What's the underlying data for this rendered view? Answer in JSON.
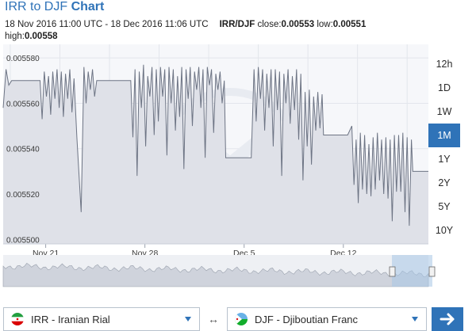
{
  "header": {
    "title_prefix": "IRR to DJF ",
    "title_bold": "Chart",
    "date_range": "18 Nov 2016 11:00 UTC - 18 Dec 2016 11:06 UTC",
    "pair": "IRR/DJF",
    "close_label": " close:",
    "close_value": "0.00553",
    "low_label": " low:",
    "low_value": "0.00551",
    "high_label": "high:",
    "high_value": "0.00558"
  },
  "ranges": [
    {
      "label": "12h",
      "active": false
    },
    {
      "label": "1D",
      "active": false
    },
    {
      "label": "1W",
      "active": false
    },
    {
      "label": "1M",
      "active": true
    },
    {
      "label": "1Y",
      "active": false
    },
    {
      "label": "2Y",
      "active": false
    },
    {
      "label": "5Y",
      "active": false
    },
    {
      "label": "10Y",
      "active": false
    }
  ],
  "converter": {
    "from_label": "IRR - Iranian Rial",
    "to_label": "DJF - Djiboutian Franc",
    "swap_symbol": "↔",
    "go_symbol": "→"
  },
  "colors": {
    "accent": "#2f73b8",
    "line": "#6d7484",
    "fill": "#dfe1e8"
  },
  "chart_data": {
    "type": "area",
    "x_tick_labels": [
      "Nov 21",
      "Nov 28",
      "Dec 5",
      "Dec 12"
    ],
    "y_tick_labels": [
      "0.005580",
      "0.005560",
      "0.005540",
      "0.005520",
      "0.005500"
    ],
    "ylim": [
      0.005498,
      0.005586
    ],
    "xlim": [
      0,
      30
    ],
    "grid": true,
    "x": [
      0,
      0.2,
      0.4,
      0.6,
      0.9,
      1.5,
      2.2,
      2.6,
      2.75,
      2.9,
      3.05,
      3.2,
      3.35,
      3.5,
      3.65,
      3.8,
      3.95,
      4.1,
      4.25,
      4.4,
      4.55,
      4.7,
      4.85,
      5.0,
      5.2,
      5.5,
      5.7,
      5.85,
      6.0,
      6.15,
      6.3,
      6.45,
      6.6,
      6.8,
      7.3,
      8.0,
      8.6,
      9.0,
      9.15,
      9.3,
      9.45,
      9.6,
      9.75,
      9.9,
      10.05,
      10.2,
      10.35,
      10.5,
      10.65,
      10.8,
      10.95,
      11.1,
      11.25,
      11.4,
      11.55,
      11.7,
      11.85,
      12.0,
      12.15,
      12.3,
      12.45,
      12.6,
      12.75,
      12.9,
      13.05,
      13.2,
      13.35,
      13.5,
      13.65,
      13.8,
      13.95,
      14.1,
      14.25,
      14.4,
      14.55,
      14.7,
      14.85,
      15.0,
      15.15,
      15.3,
      15.45,
      15.6,
      15.7,
      16.5,
      17.5,
      17.7,
      17.85,
      18.0,
      18.15,
      18.3,
      18.45,
      18.6,
      18.75,
      18.9,
      19.05,
      19.2,
      19.35,
      19.5,
      19.65,
      19.8,
      19.95,
      20.1,
      20.25,
      20.4,
      20.55,
      20.7,
      20.85,
      21.0,
      21.15,
      21.3,
      21.45,
      21.6,
      21.75,
      21.9,
      22.05,
      22.2,
      22.35,
      22.5,
      22.6,
      23.6,
      24.3,
      24.6,
      24.75,
      24.9,
      25.05,
      25.2,
      25.35,
      25.5,
      25.65,
      25.8,
      25.95,
      26.1,
      26.25,
      26.4,
      26.55,
      26.7,
      26.85,
      27.0,
      27.15,
      27.3,
      27.45,
      27.6,
      27.75,
      27.9,
      28.05,
      28.2,
      28.35,
      28.5,
      28.65,
      28.8,
      28.9,
      29.2,
      30.0
    ],
    "y": [
      0.005558,
      0.005575,
      0.005568,
      0.00557,
      0.00557,
      0.00557,
      0.00557,
      0.00557,
      0.005553,
      0.005574,
      0.005563,
      0.005572,
      0.005555,
      0.005574,
      0.005562,
      0.005575,
      0.005558,
      0.005574,
      0.005554,
      0.005573,
      0.005562,
      0.005575,
      0.005556,
      0.005571,
      0.005545,
      0.005512,
      0.005576,
      0.00556,
      0.005574,
      0.005566,
      0.005575,
      0.005563,
      0.00557,
      0.00557,
      0.00557,
      0.00557,
      0.00557,
      0.00557,
      0.005545,
      0.005575,
      0.005528,
      0.005574,
      0.005558,
      0.005577,
      0.005541,
      0.005572,
      0.005563,
      0.005576,
      0.005546,
      0.005575,
      0.005552,
      0.005576,
      0.005563,
      0.005575,
      0.005537,
      0.005576,
      0.00556,
      0.005575,
      0.005548,
      0.005572,
      0.005554,
      0.005576,
      0.005531,
      0.005575,
      0.005562,
      0.005576,
      0.00555,
      0.005574,
      0.005566,
      0.005576,
      0.005558,
      0.005575,
      0.005536,
      0.005576,
      0.005568,
      0.005575,
      0.005547,
      0.005573,
      0.005566,
      0.005574,
      0.00556,
      0.00557,
      0.005536,
      0.005536,
      0.005536,
      0.005575,
      0.005552,
      0.005576,
      0.005562,
      0.005575,
      0.005548,
      0.005573,
      0.005558,
      0.005575,
      0.005541,
      0.005575,
      0.005557,
      0.005574,
      0.005528,
      0.005573,
      0.00556,
      0.005575,
      0.005551,
      0.005572,
      0.005557,
      0.005575,
      0.005544,
      0.005573,
      0.005526,
      0.005565,
      0.005541,
      0.005566,
      0.005533,
      0.005563,
      0.005548,
      0.005565,
      0.005549,
      0.005564,
      0.005546,
      0.005546,
      0.005546,
      0.00555,
      0.005524,
      0.005544,
      0.005516,
      0.005547,
      0.005522,
      0.005546,
      0.00552,
      0.005542,
      0.005519,
      0.005545,
      0.005522,
      0.005547,
      0.005526,
      0.005544,
      0.00552,
      0.005545,
      0.005518,
      0.005544,
      0.005508,
      0.005546,
      0.005521,
      0.005546,
      0.005521,
      0.005547,
      0.005512,
      0.005545,
      0.005506,
      0.005544,
      0.00553,
      0.00553,
      0.00553
    ]
  }
}
